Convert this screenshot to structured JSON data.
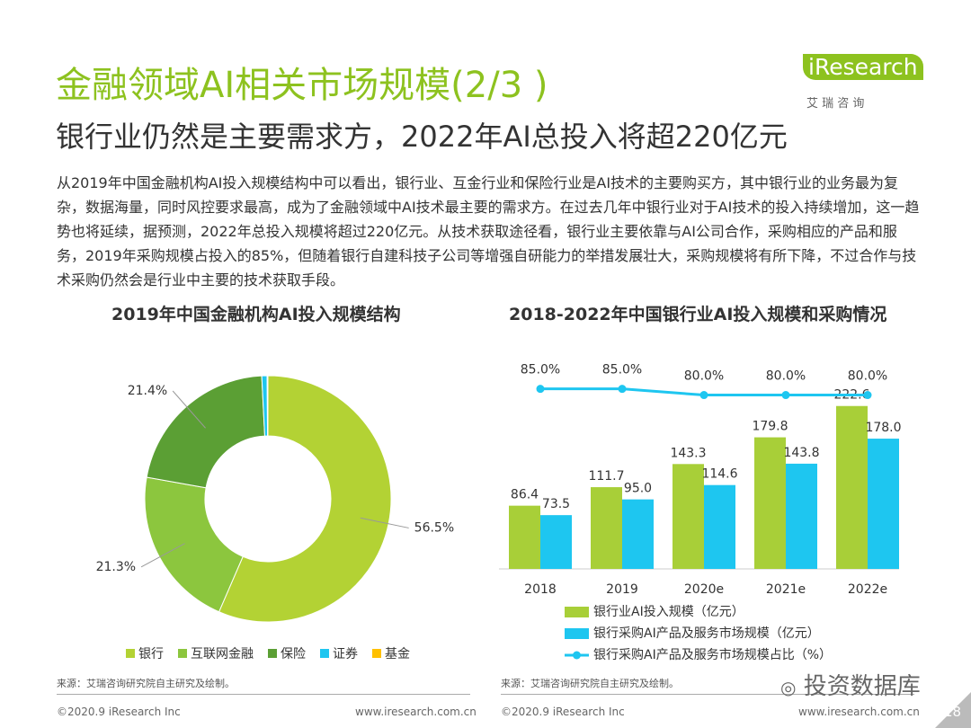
{
  "header": {
    "title": "金融领域AI相关市场规模(2/3 )",
    "subtitle": "银行业仍然是主要需求方，2022年AI总投入将超220亿元"
  },
  "logo": {
    "name": "iResearch",
    "cn": "艾 瑞 咨 询"
  },
  "body": "从2019年中国金融机构AI投入规模结构中可以看出，银行业、互金行业和保险行业是AI技术的主要购买方，其中银行业的业务最为复杂，数据海量，同时风控要求最高，成为了金融领域中AI技术最主要的需求方。在过去几年中银行业对于AI技术的投入持续增加，这一趋势也将延续，据预测，2022年总投入规模将超过220亿元。从技术获取途径看，银行业主要依靠与AI公司合作，采购相应的产品和服务，2019年采购规模占投入的85%，但随着银行自建科技子公司等增强自研能力的举措发展壮大，采购规模将有所下降，不过合作与技术采购仍然会是行业中主要的技术获取手段。",
  "chart_data": [
    {
      "type": "donut",
      "title": "2019年中国金融机构AI投入规模结构",
      "categories": [
        "银行",
        "互联网金融",
        "保险",
        "证券",
        "基金"
      ],
      "values": [
        56.5,
        21.3,
        21.4,
        0.7,
        0.1
      ],
      "value_labels": [
        "56.5%",
        "21.3%",
        "21.4%",
        null,
        null
      ],
      "colors": [
        "#b3d234",
        "#8cc63e",
        "#5b9f34",
        "#1ec6f0",
        "#ffc000"
      ]
    },
    {
      "type": "bar",
      "title": "2018-2022年中国银行业AI投入规模和采购情况",
      "categories": [
        "2018",
        "2019",
        "2020e",
        "2021e",
        "2022e"
      ],
      "ylim": [
        0,
        280
      ],
      "y2lim": [
        -60,
        105
      ],
      "series": [
        {
          "name": "银行业AI投入规模（亿元）",
          "color": "#a8cf38",
          "values": [
            86.4,
            111.7,
            143.3,
            179.8,
            222.6
          ],
          "value_labels": [
            "86.4",
            "111.7",
            "143.3",
            "179.8",
            "222.6"
          ]
        },
        {
          "name": "银行采购AI产品及服务市场规模（亿元）",
          "color": "#1ec6f0",
          "values": [
            73.5,
            95.0,
            114.6,
            143.8,
            178.0
          ],
          "value_labels": [
            "73.5",
            "95.0",
            "114.6",
            "143.8",
            "178.0"
          ]
        },
        {
          "name": "银行采购AI产品及服务市场规模占比（%）",
          "color": "#1ec6f0",
          "type": "line",
          "axis": "y2",
          "values": [
            85.0,
            85.0,
            80.0,
            80.0,
            80.0
          ],
          "value_labels": [
            "85.0%",
            "85.0%",
            "80.0%",
            "80.0%",
            "80.0%"
          ]
        }
      ]
    }
  ],
  "sources": [
    "来源：艾瑞咨询研究院自主研究及绘制。",
    "来源：艾瑞咨询研究院自主研究及绘制。"
  ],
  "footer": {
    "left_copyright": "©2020.9 iResearch Inc",
    "left_url": "www.iresearch.com.cn",
    "right_copyright": "©2020.9 iResearch Inc",
    "right_url": "www.iresearch.com.cn",
    "page": "18"
  },
  "watermark": "投资数据库"
}
